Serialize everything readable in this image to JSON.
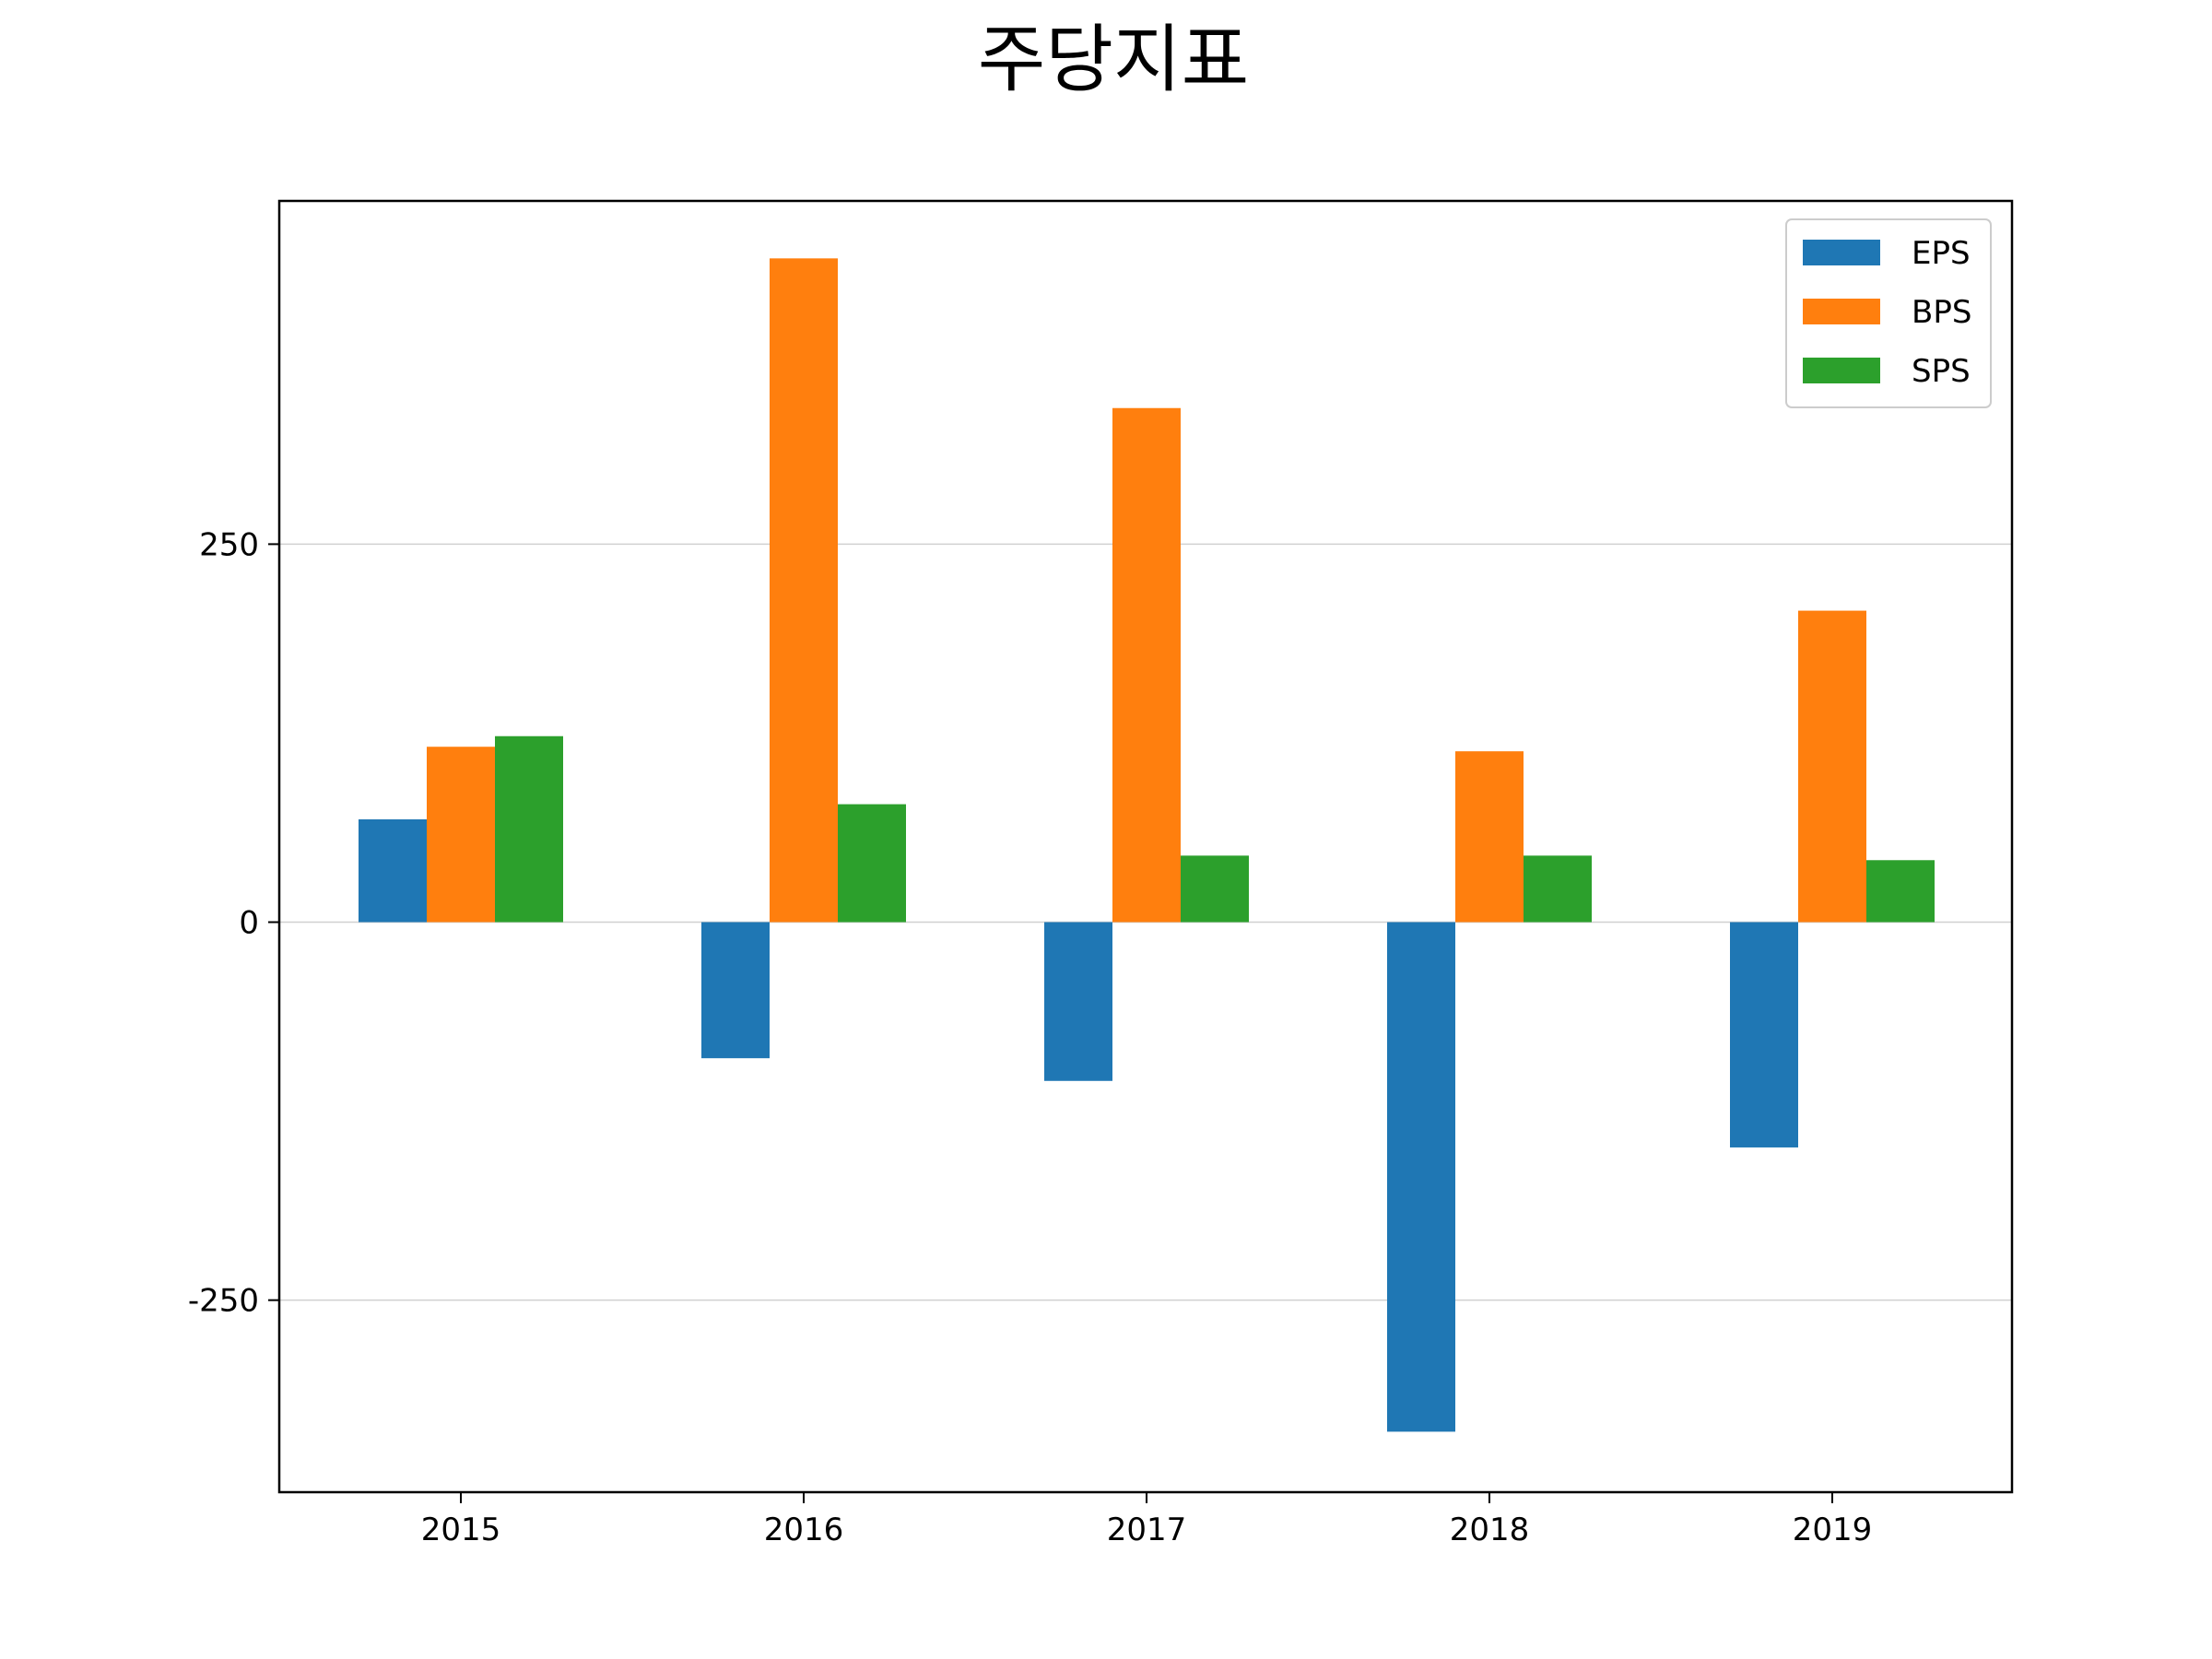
{
  "chart_data": {
    "type": "bar",
    "title": "주당지표",
    "xlabel": "",
    "ylabel": "",
    "categories": [
      "2015",
      "2016",
      "2017",
      "2018",
      "2019"
    ],
    "series": [
      {
        "name": "EPS",
        "color": "#1f77b4",
        "values": [
          68,
          -90,
          -105,
          -337,
          -149
        ]
      },
      {
        "name": "BPS",
        "color": "#ff7f0e",
        "values": [
          116,
          439,
          340,
          113,
          206
        ]
      },
      {
        "name": "SPS",
        "color": "#2ca02c",
        "values": [
          123,
          78,
          44,
          44,
          41
        ]
      }
    ],
    "yticks": [
      -250,
      0,
      250
    ],
    "ytick_labels": [
      "-250",
      "0",
      "250"
    ],
    "ylim": [
      -377,
      477
    ],
    "grid": "y",
    "legend": "top-right"
  }
}
